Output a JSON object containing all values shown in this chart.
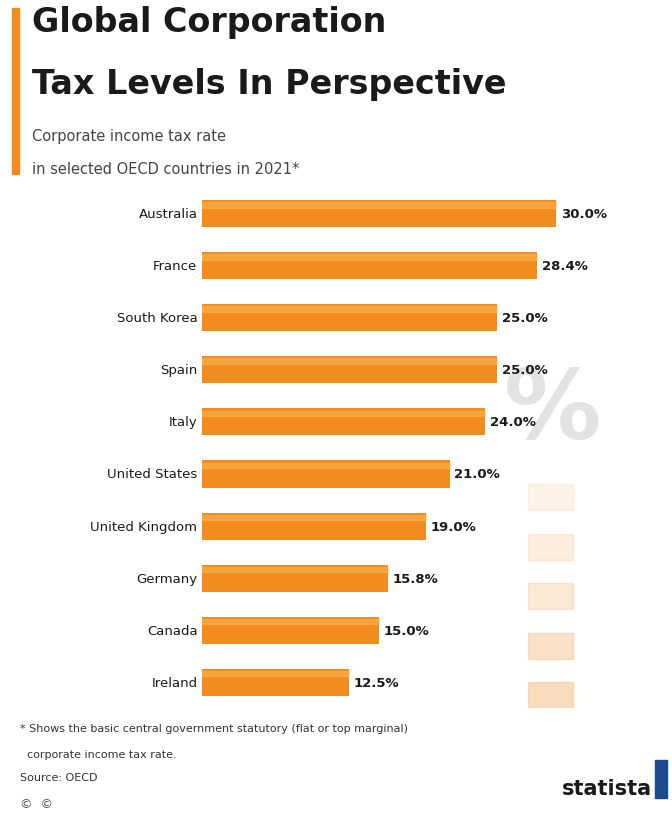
{
  "title_line1": "Global Corporation",
  "title_line2": "Tax Levels In Perspective",
  "subtitle_line1": "Corporate income tax rate",
  "subtitle_line2": "in selected OECD countries in 2021*",
  "countries": [
    "Australia",
    "France",
    "South Korea",
    "Spain",
    "Italy",
    "United States",
    "United Kingdom",
    "Germany",
    "Canada",
    "Ireland"
  ],
  "values": [
    30.0,
    28.4,
    25.0,
    25.0,
    24.0,
    21.0,
    19.0,
    15.8,
    15.0,
    12.5
  ],
  "bar_color": "#F28C1E",
  "background_color": "#FFFFFF",
  "title_color": "#1A1A1A",
  "subtitle_color": "#444444",
  "label_color": "#1A1A1A",
  "value_color": "#1A1A1A",
  "accent_color": "#F28C1E",
  "footnote_line1": "* Shows the basic central government statutory (flat or top marginal)",
  "footnote_line2": "  corporate income tax rate.",
  "footnote_line3": "Source: OECD",
  "xlim_max": 33,
  "bar_height": 0.52
}
